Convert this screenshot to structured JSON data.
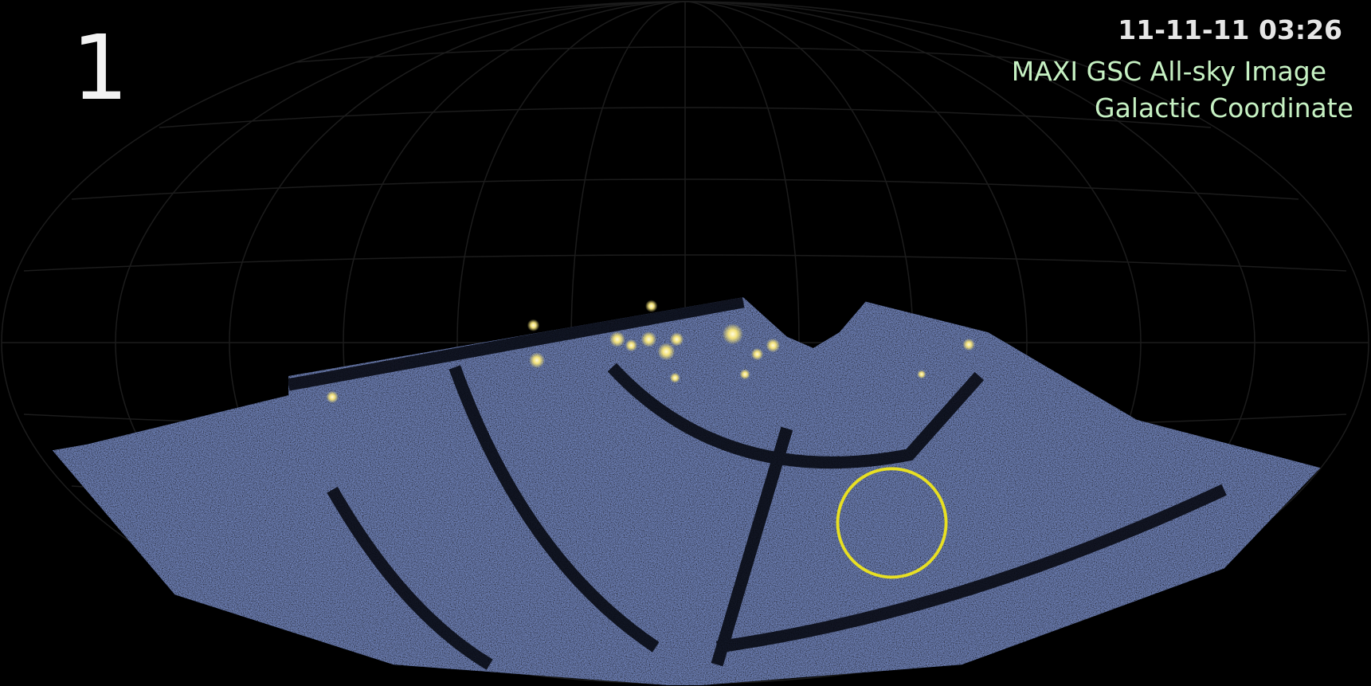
{
  "frame_number": "1",
  "timestamp": "11-11-11 03:26",
  "title": "MAXI GSC All-sky Image",
  "subtitle": "Galactic Coordinate"
}
